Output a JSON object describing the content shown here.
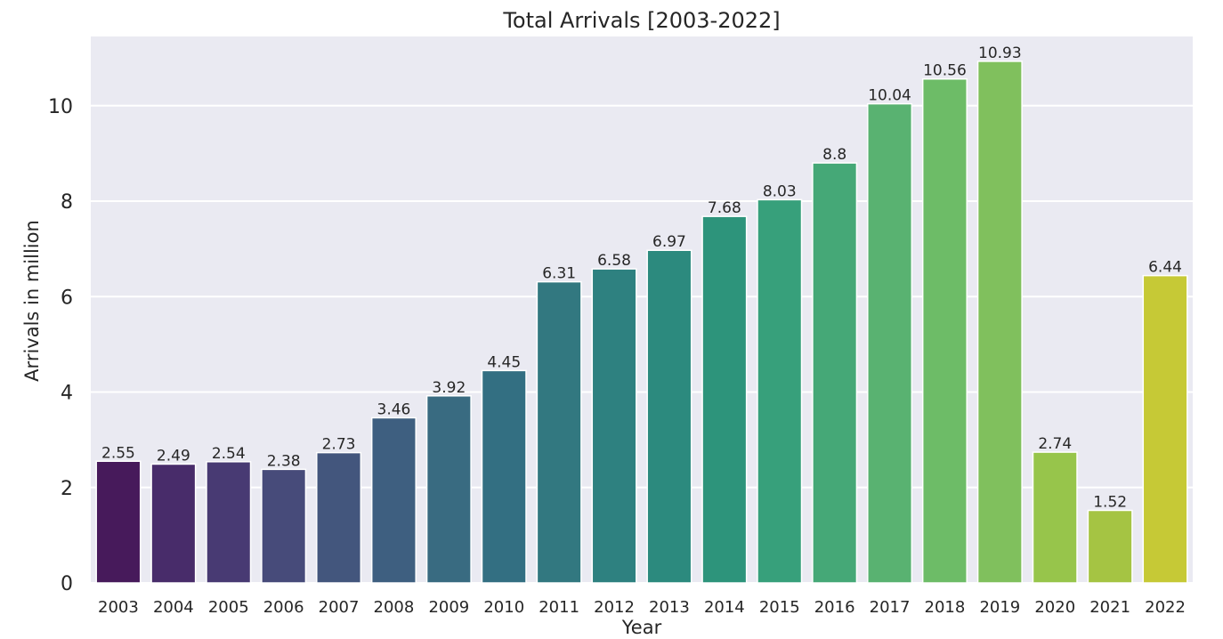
{
  "chart_data": {
    "type": "bar",
    "title": "Total Arrivals [2003-2022]",
    "xlabel": "Year",
    "ylabel": "Arrivals in million",
    "categories": [
      "2003",
      "2004",
      "2005",
      "2006",
      "2007",
      "2008",
      "2009",
      "2010",
      "2011",
      "2012",
      "2013",
      "2014",
      "2015",
      "2016",
      "2017",
      "2018",
      "2019",
      "2020",
      "2021",
      "2022"
    ],
    "values": [
      2.55,
      2.49,
      2.54,
      2.38,
      2.73,
      3.46,
      3.92,
      4.45,
      6.31,
      6.58,
      6.97,
      7.68,
      8.03,
      8.8,
      10.04,
      10.56,
      10.93,
      2.74,
      1.52,
      6.44
    ],
    "data_labels": [
      "2.55",
      "2.49",
      "2.54",
      "2.38",
      "2.73",
      "3.46",
      "3.92",
      "4.45",
      "6.31",
      "6.58",
      "6.97",
      "7.68",
      "8.03",
      "8.8",
      "10.04",
      "10.56",
      "10.93",
      "2.74",
      "1.52",
      "6.44"
    ],
    "ylim": [
      0,
      11.45
    ],
    "yticks": [
      0,
      2,
      4,
      6,
      8,
      10
    ],
    "grid": true,
    "colors": [
      "#471a5b",
      "#482c6a",
      "#483a73",
      "#474b7a",
      "#43567d",
      "#3e5f80",
      "#396b81",
      "#336f82",
      "#327880",
      "#2e8180",
      "#2c8a7e",
      "#2d947b",
      "#37a07b",
      "#45a877",
      "#59b271",
      "#6dbc67",
      "#80c05d",
      "#97c54b",
      "#a5c443",
      "#c6c936"
    ],
    "background": "#eaeaf2",
    "grid_color": "#ffffff"
  }
}
